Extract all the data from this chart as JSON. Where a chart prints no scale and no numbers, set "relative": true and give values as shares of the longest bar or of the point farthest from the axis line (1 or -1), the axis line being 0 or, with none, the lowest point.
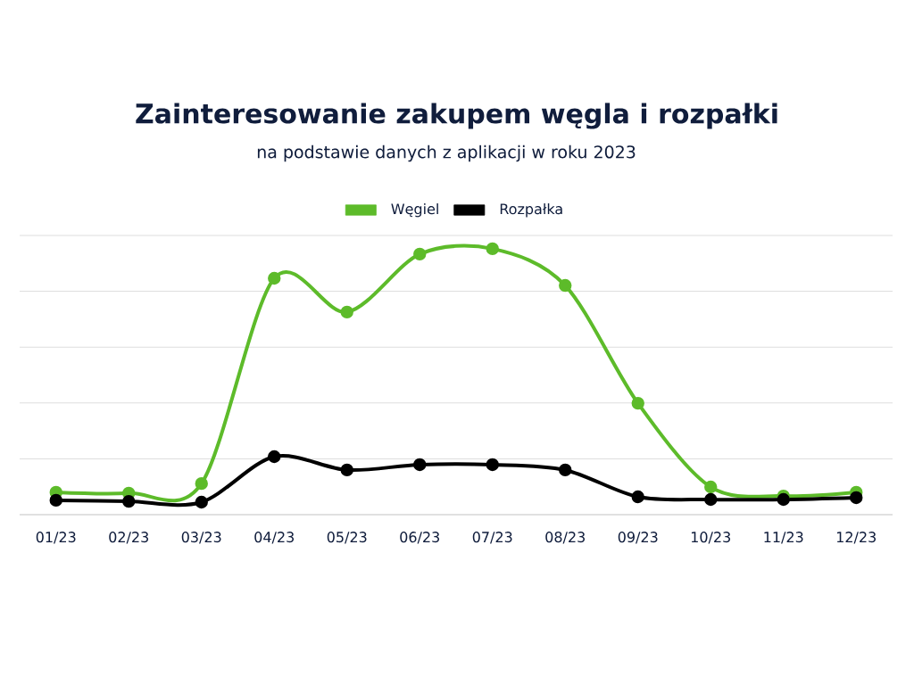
{
  "chart_data": {
    "type": "line",
    "title": "Zainteresowanie zakupem węgla i rozpałki",
    "subtitle": "na podstawie danych z aplikacji w roku 2023",
    "categories": [
      "01/23",
      "02/23",
      "03/23",
      "04/23",
      "05/23",
      "06/23",
      "07/23",
      "08/23",
      "09/23",
      "10/23",
      "11/23",
      "12/23"
    ],
    "relative": true,
    "grid": "y",
    "legend": "top",
    "marker": "circle",
    "line_style": "solid",
    "series": [
      {
        "name": "Węgiel",
        "color": "#5dbb2a",
        "values": [
          0.084,
          0.081,
          0.117,
          0.889,
          0.762,
          0.98,
          1,
          0.862,
          0.419,
          0.104,
          0.07,
          0.084
        ]
      },
      {
        "name": "Rozpałka",
        "color": "#000000",
        "values": [
          0.054,
          0.05,
          0.047,
          0.218,
          0.168,
          0.188,
          0.188,
          0.168,
          0.067,
          0.057,
          0.057,
          0.064
        ]
      }
    ]
  }
}
